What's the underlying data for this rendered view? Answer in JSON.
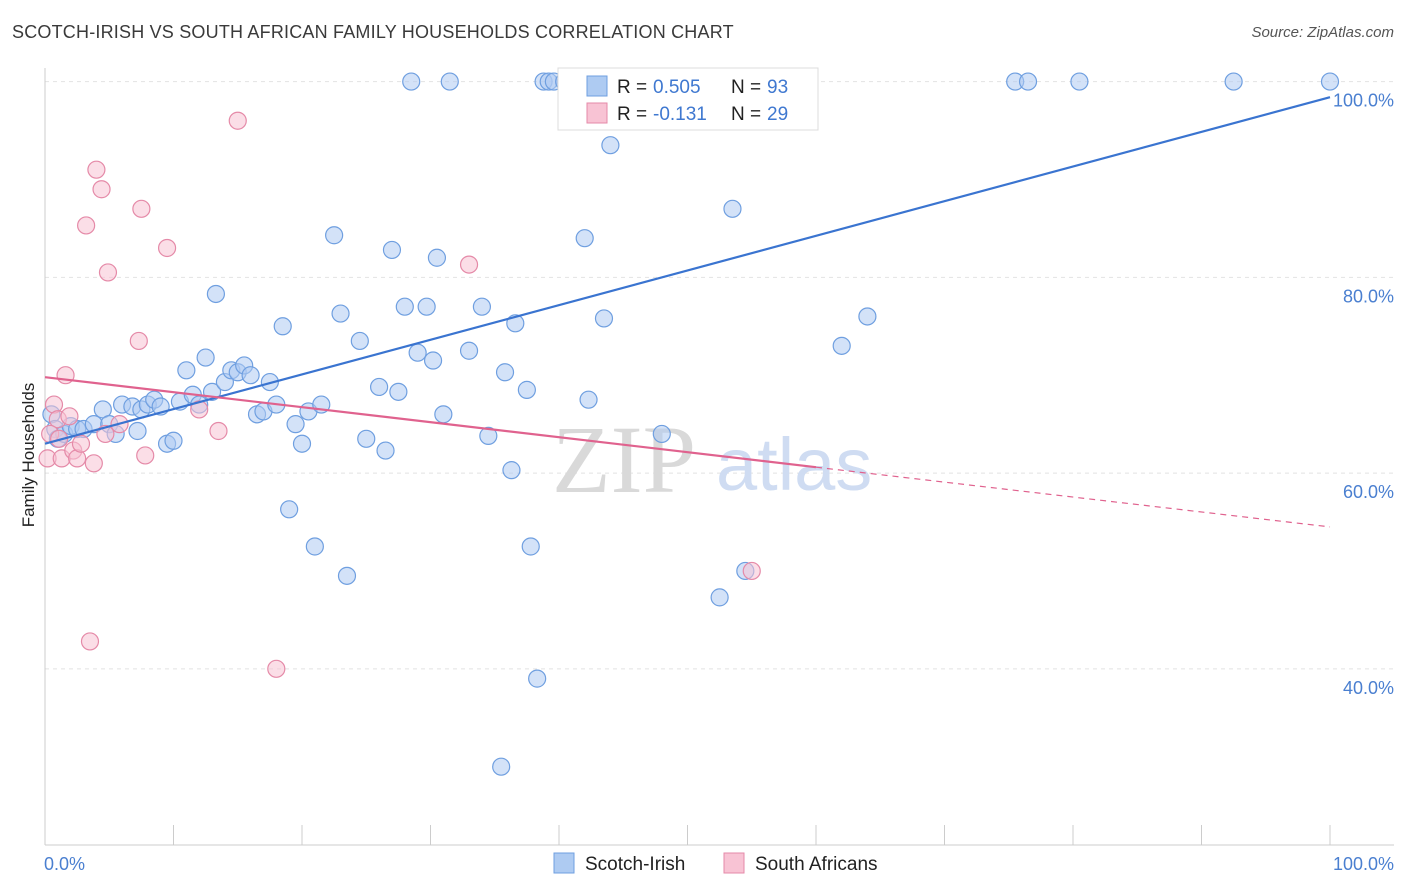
{
  "title": "SCOTCH-IRISH VS SOUTH AFRICAN FAMILY HOUSEHOLDS CORRELATION CHART",
  "source": "Source: ZipAtlas.com",
  "watermark": {
    "zip": "ZIP",
    "atlas": "atlas"
  },
  "legend_top": [
    {
      "swatch": "#aecbf2",
      "stroke": "#6f9fe0",
      "r_label": "R =",
      "r_value": "0.505",
      "n_label": "N =",
      "n_value": "93"
    },
    {
      "swatch": "#f8c3d4",
      "stroke": "#e58aa8",
      "r_label": "R =",
      "r_value": "-0.131",
      "n_label": "N =",
      "n_value": "29"
    }
  ],
  "legend_bottom": [
    {
      "label": "Scotch-Irish",
      "swatch": "#aecbf2",
      "stroke": "#6f9fe0"
    },
    {
      "label": "South Africans",
      "swatch": "#f8c3d4",
      "stroke": "#e58aa8"
    }
  ],
  "chart_data": {
    "type": "scatter",
    "title": "SCOTCH-IRISH VS SOUTH AFRICAN FAMILY HOUSEHOLDS CORRELATION CHART",
    "xlabel": "",
    "ylabel": "Family Households",
    "xlim": [
      0,
      100
    ],
    "ylim": [
      22,
      102
    ],
    "x_tick_labels": [
      "0.0%",
      "100.0%"
    ],
    "y_ticks": [
      40,
      60,
      80,
      100
    ],
    "y_tick_labels": [
      "40.0%",
      "60.0%",
      "80.0%",
      "100.0%"
    ],
    "grid": true,
    "legend_position": "top-center",
    "series": [
      {
        "name": "Scotch-Irish",
        "color": "#6f9fe0",
        "fill": "#aecbf2",
        "trend": {
          "x": [
            0,
            100
          ],
          "y": [
            63.0,
            98.4
          ],
          "color": "#3a74d0"
        },
        "points": [
          [
            0.5,
            66.0
          ],
          [
            0.8,
            64.5
          ],
          [
            1.0,
            63.5
          ],
          [
            1.5,
            64.0
          ],
          [
            2.0,
            64.8
          ],
          [
            2.5,
            64.5
          ],
          [
            3.0,
            64.5
          ],
          [
            3.8,
            65.0
          ],
          [
            4.5,
            66.5
          ],
          [
            5.0,
            65.0
          ],
          [
            5.5,
            64.0
          ],
          [
            6.0,
            67.0
          ],
          [
            6.8,
            66.8
          ],
          [
            7.2,
            64.3
          ],
          [
            7.5,
            66.5
          ],
          [
            8.0,
            67.0
          ],
          [
            8.5,
            67.5
          ],
          [
            9.0,
            66.8
          ],
          [
            9.5,
            63.0
          ],
          [
            10.0,
            63.3
          ],
          [
            10.5,
            67.3
          ],
          [
            11.0,
            70.5
          ],
          [
            11.5,
            68.0
          ],
          [
            12.0,
            67.0
          ],
          [
            12.5,
            71.8
          ],
          [
            13.0,
            68.3
          ],
          [
            13.3,
            78.3
          ],
          [
            14.0,
            69.3
          ],
          [
            14.5,
            70.5
          ],
          [
            15.0,
            70.3
          ],
          [
            15.5,
            71.0
          ],
          [
            16.0,
            70.0
          ],
          [
            16.5,
            66.0
          ],
          [
            17.0,
            66.3
          ],
          [
            17.5,
            69.3
          ],
          [
            18.0,
            67.0
          ],
          [
            18.5,
            75.0
          ],
          [
            19.0,
            56.3
          ],
          [
            19.5,
            65.0
          ],
          [
            20.0,
            63.0
          ],
          [
            20.5,
            66.3
          ],
          [
            21.0,
            52.5
          ],
          [
            21.5,
            67.0
          ],
          [
            22.5,
            84.3
          ],
          [
            23.0,
            76.3
          ],
          [
            23.5,
            49.5
          ],
          [
            24.5,
            73.5
          ],
          [
            25.0,
            63.5
          ],
          [
            26.0,
            68.8
          ],
          [
            26.5,
            62.3
          ],
          [
            27.0,
            82.8
          ],
          [
            27.5,
            68.3
          ],
          [
            28.0,
            77.0
          ],
          [
            28.5,
            100.0
          ],
          [
            29.0,
            72.3
          ],
          [
            29.7,
            77.0
          ],
          [
            30.2,
            71.5
          ],
          [
            30.5,
            82.0
          ],
          [
            31.0,
            66.0
          ],
          [
            31.5,
            100.0
          ],
          [
            33.0,
            72.5
          ],
          [
            34.0,
            77.0
          ],
          [
            34.5,
            63.8
          ],
          [
            35.5,
            30.0
          ],
          [
            35.8,
            70.3
          ],
          [
            36.3,
            60.3
          ],
          [
            36.6,
            75.3
          ],
          [
            37.5,
            68.5
          ],
          [
            37.8,
            52.5
          ],
          [
            38.3,
            39.0
          ],
          [
            38.8,
            100.0
          ],
          [
            39.2,
            100.0
          ],
          [
            39.6,
            100.0
          ],
          [
            40.4,
            100.0
          ],
          [
            40.8,
            100.0
          ],
          [
            42.0,
            84.0
          ],
          [
            42.3,
            67.5
          ],
          [
            43.5,
            75.8
          ],
          [
            44.0,
            93.5
          ],
          [
            50.5,
            100.0
          ],
          [
            50.8,
            100.0
          ],
          [
            48.0,
            64.0
          ],
          [
            52.5,
            47.3
          ],
          [
            53.5,
            87.0
          ],
          [
            54.5,
            50.0
          ],
          [
            56.5,
            100.0
          ],
          [
            62.0,
            73.0
          ],
          [
            64.0,
            76.0
          ],
          [
            75.5,
            100.0
          ],
          [
            76.5,
            100.0
          ],
          [
            80.5,
            100.0
          ],
          [
            92.5,
            100.0
          ],
          [
            100.0,
            100.0
          ]
        ]
      },
      {
        "name": "South Africans",
        "color": "#e58aa8",
        "fill": "#f8c3d4",
        "trend": {
          "x": [
            0,
            60,
            100
          ],
          "y": [
            69.8,
            60.6,
            54.5
          ],
          "color": "#e0628e"
        },
        "points": [
          [
            0.2,
            61.5
          ],
          [
            0.7,
            67.0
          ],
          [
            1.0,
            65.5
          ],
          [
            1.3,
            61.5
          ],
          [
            1.6,
            70.0
          ],
          [
            1.9,
            65.8
          ],
          [
            2.2,
            62.3
          ],
          [
            2.5,
            61.5
          ],
          [
            2.8,
            63.0
          ],
          [
            3.2,
            85.3
          ],
          [
            3.5,
            42.8
          ],
          [
            3.8,
            61.0
          ],
          [
            4.0,
            91.0
          ],
          [
            4.4,
            89.0
          ],
          [
            4.7,
            64.0
          ],
          [
            4.9,
            80.5
          ],
          [
            5.8,
            65.0
          ],
          [
            7.3,
            73.5
          ],
          [
            7.5,
            87.0
          ],
          [
            7.8,
            61.8
          ],
          [
            9.5,
            83.0
          ],
          [
            12.0,
            66.5
          ],
          [
            13.5,
            64.3
          ],
          [
            15.0,
            96.0
          ],
          [
            18.0,
            40.0
          ],
          [
            33.0,
            81.3
          ],
          [
            55.0,
            50.0
          ],
          [
            0.4,
            64.0
          ],
          [
            1.1,
            63.5
          ]
        ]
      }
    ]
  }
}
